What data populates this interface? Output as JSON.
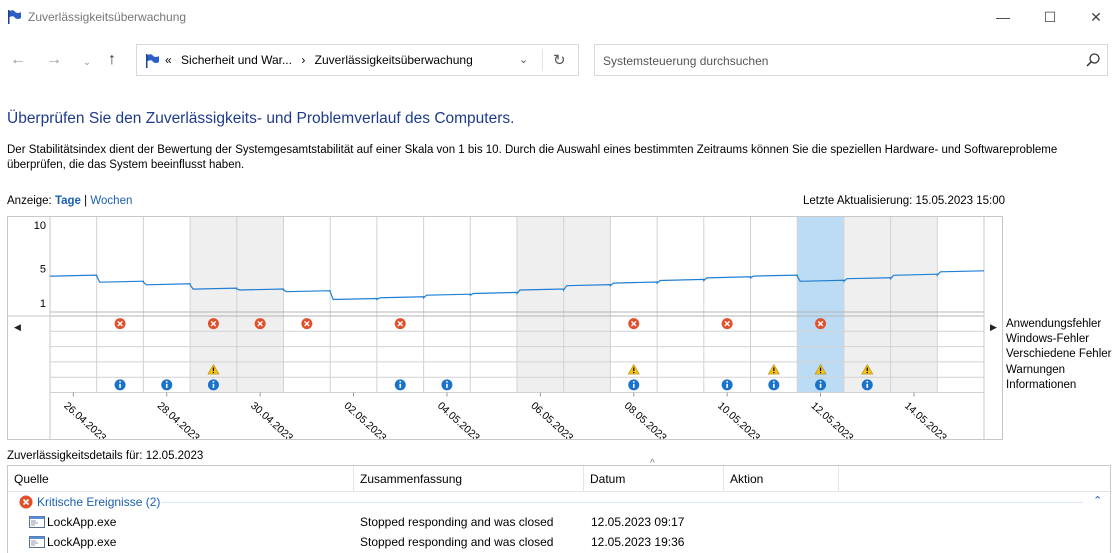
{
  "window": {
    "title": "Zuverlässigkeitsüberwachung",
    "minimize_label": "—",
    "maximize_label": "☐",
    "close_label": "✕"
  },
  "nav": {
    "back_label": "←",
    "forward_label": "→",
    "recent_label": "⌄",
    "up_label": "↑",
    "breadcrumb_overflow": "«",
    "breadcrumb_parent": "Sicherheit und War...",
    "breadcrumb_separator": "›",
    "breadcrumb_current": "Zuverlässigkeitsüberwachung",
    "dropdown_label": "⌄",
    "refresh_label": "↻",
    "search_placeholder": "Systemsteuerung durchsuchen"
  },
  "page": {
    "heading": "Überprüfen Sie den Zuverlässigkeits- und Problemverlauf des Computers.",
    "description": "Der Stabilitätsindex dient der Bewertung der Systemgesamtstabilität auf einer Skala von 1 bis 10. Durch die Auswahl eines bestimmten Zeitraums können Sie die speziellen Hardware- und Softwareprobleme überprüfen, die das System beeinflusst haben.",
    "view_label": "Anzeige:",
    "view_days": "Tage",
    "view_separator": "|",
    "view_weeks": "Wochen",
    "last_update": "Letzte Aktualisierung: 15.05.2023 15:00"
  },
  "chart_data": {
    "type": "line",
    "y_ticks": [
      "10",
      "5",
      "1"
    ],
    "ylim": [
      1,
      10
    ],
    "dates": [
      "26.04.2023",
      "27.04.2023",
      "28.04.2023",
      "29.04.2023",
      "30.04.2023",
      "01.05.2023",
      "02.05.2023",
      "03.05.2023",
      "04.05.2023",
      "05.05.2023",
      "06.05.2023",
      "07.05.2023",
      "08.05.2023",
      "09.05.2023",
      "10.05.2023",
      "11.05.2023",
      "12.05.2023",
      "13.05.2023",
      "14.05.2023",
      "15.05.2023"
    ],
    "x_tick_labels": [
      "26.04.2023",
      "28.04.2023",
      "30.04.2023",
      "02.05.2023",
      "04.05.2023",
      "06.05.2023",
      "08.05.2023",
      "10.05.2023",
      "12.05.2023",
      "14.05.2023"
    ],
    "selected_date": "12.05.2023",
    "stability_index": [
      4.1,
      3.4,
      3.1,
      2.6,
      2.5,
      2.3,
      1.4,
      1.6,
      1.9,
      2.1,
      2.5,
      3.0,
      3.3,
      3.6,
      3.9,
      4.1,
      3.5,
      3.8,
      4.2,
      4.6
    ],
    "legend": [
      "Anwendungsfehler",
      "Windows-Fehler",
      "Verschiedene Fehler",
      "Warnungen",
      "Informationen"
    ],
    "events": {
      "Anwendungsfehler": [
        "27.04.2023",
        "29.04.2023",
        "30.04.2023",
        "01.05.2023",
        "03.05.2023",
        "08.05.2023",
        "10.05.2023",
        "12.05.2023"
      ],
      "Windows-Fehler": [],
      "Verschiedene Fehler": [],
      "Warnungen": [
        "29.04.2023",
        "08.05.2023",
        "11.05.2023",
        "12.05.2023",
        "13.05.2023"
      ],
      "Informationen": [
        "27.04.2023",
        "28.04.2023",
        "29.04.2023",
        "03.05.2023",
        "04.05.2023",
        "08.05.2023",
        "10.05.2023",
        "11.05.2023",
        "12.05.2023",
        "13.05.2023"
      ]
    },
    "colors": {
      "line": "#1f7fd4",
      "selection": "#bcdcf5",
      "weekend": "#efefef",
      "error": "#e0502a",
      "warning": "#f2c418",
      "info": "#1a73c8"
    },
    "scroll_left_label": "◀",
    "scroll_right_label": "▶"
  },
  "details": {
    "label": "Zuverlässigkeitsdetails für: 12.05.2023",
    "columns": [
      "Quelle",
      "Zusammenfassung",
      "Datum",
      "Aktion"
    ],
    "sort_indicator": "^",
    "group_title": "Kritische Ereignisse (2)",
    "group_collapse_label": "⌃",
    "rows": [
      {
        "source": "LockApp.exe",
        "summary": "Stopped responding and was closed",
        "date": "12.05.2023 09:17"
      },
      {
        "source": "LockApp.exe",
        "summary": "Stopped responding and was closed",
        "date": "12.05.2023 19:36"
      }
    ]
  }
}
